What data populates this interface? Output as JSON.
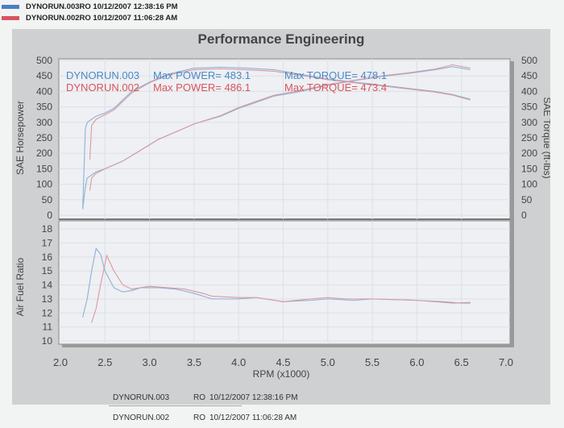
{
  "legend": [
    {
      "label": "DYNORUN.003RO  10/12/2007 12:38:16 PM",
      "color": "#4a7fc0"
    },
    {
      "label": "DYNORUN.002RO  10/12/2007 11:06:28 AM",
      "color": "#d9545e"
    }
  ],
  "footer": [
    {
      "run": "DYNORUN.003",
      "type": "RO",
      "datetime": "10/12/2007 12:38:16 PM"
    },
    {
      "run": "DYNORUN.002",
      "type": "RO",
      "datetime": "10/12/2007 11:06:28 AM"
    }
  ],
  "chart_data": {
    "type": "line",
    "title": "Performance Engineering",
    "xlabel": "RPM (x1000)",
    "xlim": [
      2.0,
      7.0
    ],
    "xticks": [
      "2.0",
      "2.5",
      "3.0",
      "3.5",
      "4.0",
      "4.5",
      "5.0",
      "5.5",
      "6.0",
      "6.5",
      "7.0"
    ],
    "top": {
      "ylabel_left": "SAE Horsepower",
      "ylabel_right": "SAE Torque (ft-lbs)",
      "ylim": [
        0,
        500
      ],
      "yticks": [
        "0",
        "50",
        "100",
        "150",
        "200",
        "250",
        "300",
        "350",
        "400",
        "450",
        "500"
      ]
    },
    "bottom": {
      "ylabel": "Air Fuel Ratio",
      "ylim": [
        10,
        18
      ],
      "yticks": [
        "10",
        "11",
        "12",
        "13",
        "14",
        "15",
        "16",
        "17",
        "18"
      ]
    },
    "annotations": [
      {
        "run": "DYNORUN.003",
        "power": "Max POWER= 483.1",
        "torque": "Max TORQUE= 478.1",
        "color": "#4a8ac8"
      },
      {
        "run": "DYNORUN.002",
        "power": "Max POWER= 486.1",
        "torque": "Max TORQUE= 473.4",
        "color": "#d9545e"
      }
    ],
    "series": [
      {
        "name": "DYNORUN.003 Power",
        "color": "#8fb0d8",
        "panel": "top",
        "x": [
          2.25,
          2.28,
          2.3,
          2.4,
          2.5,
          2.7,
          2.9,
          3.1,
          3.3,
          3.5,
          3.8,
          4.0,
          4.2,
          4.4,
          4.7,
          5.0,
          5.3,
          5.6,
          5.9,
          6.2,
          6.4,
          6.6
        ],
        "y": [
          20,
          90,
          120,
          140,
          150,
          175,
          210,
          245,
          270,
          295,
          320,
          345,
          365,
          385,
          400,
          420,
          435,
          448,
          458,
          470,
          480,
          470
        ]
      },
      {
        "name": "DYNORUN.003 Torque",
        "color": "#8fb0d8",
        "panel": "top",
        "x": [
          2.25,
          2.28,
          2.3,
          2.4,
          2.5,
          2.6,
          2.8,
          3.0,
          3.2,
          3.5,
          3.8,
          4.1,
          4.4,
          4.7,
          5.0,
          5.3,
          5.6,
          5.9,
          6.2,
          6.4,
          6.6
        ],
        "y": [
          20,
          280,
          300,
          320,
          330,
          345,
          400,
          430,
          455,
          475,
          478,
          475,
          470,
          455,
          440,
          430,
          420,
          410,
          400,
          390,
          375
        ]
      },
      {
        "name": "DYNORUN.002 Power",
        "color": "#d99aa0",
        "panel": "top",
        "x": [
          2.33,
          2.35,
          2.4,
          2.5,
          2.7,
          2.9,
          3.1,
          3.3,
          3.5,
          3.8,
          4.0,
          4.2,
          4.4,
          4.7,
          5.0,
          5.3,
          5.6,
          5.9,
          6.2,
          6.4,
          6.6
        ],
        "y": [
          80,
          120,
          135,
          150,
          175,
          210,
          245,
          270,
          295,
          322,
          348,
          368,
          388,
          403,
          422,
          436,
          450,
          460,
          472,
          486,
          475
        ]
      },
      {
        "name": "DYNORUN.002 Torque",
        "color": "#d99aa0",
        "panel": "top",
        "x": [
          2.33,
          2.35,
          2.4,
          2.5,
          2.6,
          2.8,
          3.0,
          3.2,
          3.5,
          3.8,
          4.1,
          4.4,
          4.7,
          5.0,
          5.3,
          5.6,
          5.9,
          6.2,
          6.4,
          6.6
        ],
        "y": [
          180,
          290,
          310,
          325,
          340,
          395,
          428,
          452,
          470,
          473,
          470,
          465,
          452,
          438,
          428,
          418,
          408,
          398,
          388,
          372
        ]
      },
      {
        "name": "DYNORUN.003 AFR",
        "color": "#8fb0d8",
        "panel": "bottom",
        "x": [
          2.25,
          2.3,
          2.35,
          2.4,
          2.45,
          2.5,
          2.6,
          2.7,
          2.8,
          2.9,
          3.1,
          3.3,
          3.5,
          3.7,
          4.0,
          4.2,
          4.5,
          4.8,
          5.0,
          5.3,
          5.5,
          6.0,
          6.3,
          6.5,
          6.6
        ],
        "y": [
          11.7,
          13.0,
          15.0,
          16.6,
          16.2,
          15.0,
          13.8,
          13.5,
          13.6,
          13.8,
          13.8,
          13.7,
          13.4,
          13.0,
          13.0,
          13.1,
          12.8,
          12.9,
          13.0,
          12.9,
          13.0,
          12.9,
          12.8,
          12.7,
          12.7
        ]
      },
      {
        "name": "DYNORUN.002 AFR",
        "color": "#d99aa0",
        "panel": "bottom",
        "x": [
          2.35,
          2.4,
          2.45,
          2.52,
          2.6,
          2.7,
          2.8,
          3.0,
          3.2,
          3.4,
          3.6,
          3.7,
          4.0,
          4.2,
          4.5,
          4.8,
          5.0,
          5.2,
          5.5,
          6.0,
          6.4,
          6.6
        ],
        "y": [
          11.3,
          12.3,
          14.0,
          16.1,
          15.0,
          14.0,
          13.7,
          13.9,
          13.8,
          13.7,
          13.4,
          13.2,
          13.1,
          13.1,
          12.8,
          13.0,
          13.1,
          13.0,
          13.0,
          12.9,
          12.7,
          12.75
        ]
      }
    ]
  }
}
